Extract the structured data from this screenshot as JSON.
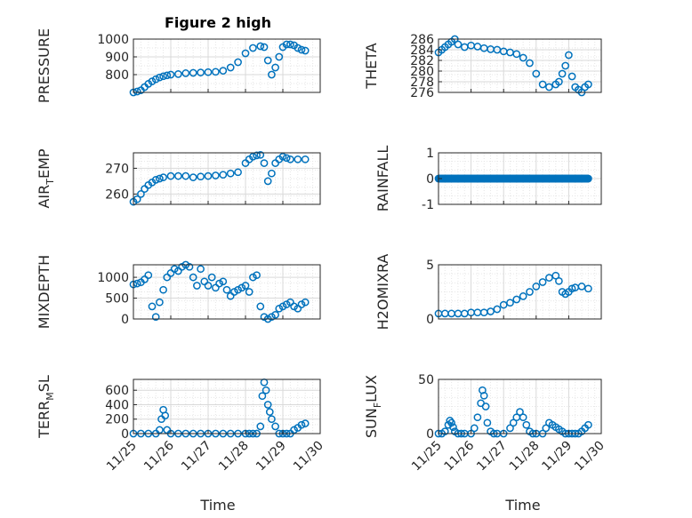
{
  "figure": {
    "title": "Figure 2 high",
    "xlabel": "Time",
    "x_tick_labels": [
      "11/25",
      "11/26",
      "11/27",
      "11/28",
      "11/29",
      "11/30"
    ]
  },
  "colors": {
    "marker": "#0072BD",
    "axis": "#262626",
    "grid": "#d9d9d9"
  },
  "chart_data": [
    {
      "type": "scatter",
      "id": "pressure",
      "ylabel": "PRESSURE",
      "ylim": [
        700,
        1000
      ],
      "yticks": [
        800,
        900,
        1000
      ],
      "ytick_labels": [
        "800",
        "900",
        "1000"
      ],
      "xlim": [
        0,
        5
      ],
      "grid": true,
      "marker": "circle-open",
      "x": [
        0.0,
        0.1,
        0.2,
        0.3,
        0.4,
        0.5,
        0.6,
        0.7,
        0.8,
        0.9,
        1.0,
        1.2,
        1.4,
        1.6,
        1.8,
        2.0,
        2.2,
        2.4,
        2.6,
        2.8,
        3.0,
        3.2,
        3.4,
        3.5,
        3.6,
        3.7,
        3.8,
        3.9,
        4.0,
        4.1,
        4.2,
        4.3,
        4.4,
        4.5,
        4.6
      ],
      "y": [
        700,
        705,
        712,
        730,
        748,
        762,
        774,
        784,
        791,
        796,
        800,
        803,
        808,
        810,
        812,
        814,
        816,
        822,
        840,
        870,
        920,
        950,
        960,
        955,
        880,
        800,
        840,
        900,
        955,
        970,
        970,
        965,
        950,
        940,
        935
      ],
      "title": "Figure 2 high"
    },
    {
      "type": "scatter",
      "id": "theta",
      "ylabel": "THETA",
      "ylim": [
        276,
        286
      ],
      "yticks": [
        276,
        278,
        280,
        282,
        284,
        286
      ],
      "ytick_labels": [
        "276",
        "278",
        "280",
        "282",
        "284",
        "286"
      ],
      "xlim": [
        0,
        5
      ],
      "grid": true,
      "marker": "circle-open",
      "x": [
        0.0,
        0.1,
        0.2,
        0.3,
        0.4,
        0.5,
        0.6,
        0.8,
        1.0,
        1.2,
        1.4,
        1.6,
        1.8,
        2.0,
        2.2,
        2.4,
        2.6,
        2.8,
        3.0,
        3.2,
        3.4,
        3.6,
        3.7,
        3.8,
        3.9,
        4.0,
        4.1,
        4.2,
        4.3,
        4.4,
        4.5,
        4.6
      ],
      "y": [
        283.5,
        284,
        284.5,
        285,
        285.5,
        286,
        285,
        284.5,
        284.8,
        284.6,
        284.3,
        284.1,
        284.0,
        283.7,
        283.5,
        283.2,
        282.5,
        281.5,
        279.5,
        277.5,
        277.0,
        277.5,
        278.0,
        279.5,
        281.0,
        283.0,
        279.0,
        277.0,
        276.5,
        276.0,
        277.0,
        277.5
      ]
    },
    {
      "type": "scatter",
      "id": "air_temp",
      "ylabel": "AIR_TEMP",
      "ylim": [
        256,
        276
      ],
      "yticks": [
        260,
        270
      ],
      "ytick_labels": [
        "260",
        "270"
      ],
      "xlim": [
        0,
        5
      ],
      "grid": true,
      "marker": "circle-open",
      "x": [
        0.0,
        0.1,
        0.2,
        0.3,
        0.4,
        0.5,
        0.6,
        0.7,
        0.8,
        1.0,
        1.2,
        1.4,
        1.6,
        1.8,
        2.0,
        2.2,
        2.4,
        2.6,
        2.8,
        3.0,
        3.1,
        3.2,
        3.3,
        3.4,
        3.5,
        3.6,
        3.7,
        3.8,
        3.9,
        4.0,
        4.1,
        4.2,
        4.4,
        4.6
      ],
      "y": [
        257,
        258,
        260,
        262,
        263.5,
        264.5,
        265.5,
        266,
        266.5,
        267,
        267,
        267,
        266.5,
        266.8,
        267,
        267.2,
        267.5,
        268,
        268.5,
        272,
        273.5,
        274.5,
        275,
        275.2,
        272,
        265,
        268,
        272,
        273.5,
        274.5,
        274,
        273.5,
        273.5,
        273.5
      ]
    },
    {
      "type": "scatter",
      "id": "rainfall",
      "ylabel": "RAINFALL",
      "ylim": [
        -1,
        1
      ],
      "yticks": [
        -1,
        0,
        1
      ],
      "ytick_labels": [
        "-1",
        "0",
        "1"
      ],
      "xlim": [
        0,
        5
      ],
      "grid": true,
      "marker": "circle-open",
      "x_range": [
        0.0,
        4.6
      ],
      "constant_value": 0
    },
    {
      "type": "scatter",
      "id": "mixdepth",
      "ylabel": "MIXDEPTH",
      "ylim": [
        0,
        1300
      ],
      "yticks": [
        0,
        500,
        1000
      ],
      "ytick_labels": [
        "0",
        "500",
        "1000"
      ],
      "xlim": [
        0,
        5
      ],
      "grid": true,
      "marker": "circle-open",
      "x": [
        0.0,
        0.1,
        0.2,
        0.3,
        0.4,
        0.5,
        0.6,
        0.7,
        0.8,
        0.9,
        1.0,
        1.1,
        1.2,
        1.3,
        1.4,
        1.5,
        1.6,
        1.7,
        1.8,
        1.9,
        2.0,
        2.1,
        2.2,
        2.3,
        2.4,
        2.5,
        2.6,
        2.7,
        2.8,
        2.9,
        3.0,
        3.1,
        3.2,
        3.3,
        3.4,
        3.5,
        3.6,
        3.7,
        3.8,
        3.9,
        4.0,
        4.1,
        4.2,
        4.3,
        4.4,
        4.5,
        4.6
      ],
      "y": [
        830,
        850,
        880,
        950,
        1050,
        300,
        50,
        400,
        700,
        1000,
        1100,
        1200,
        1150,
        1250,
        1300,
        1250,
        1000,
        800,
        1200,
        900,
        800,
        1000,
        750,
        850,
        900,
        700,
        550,
        650,
        700,
        750,
        800,
        650,
        1000,
        1050,
        300,
        50,
        0,
        50,
        100,
        250,
        300,
        350,
        400,
        300,
        250,
        350,
        400
      ]
    },
    {
      "type": "scatter",
      "id": "h2omixra",
      "ylabel": "H2OMIXRA",
      "ylim": [
        0,
        5
      ],
      "yticks": [
        0,
        5
      ],
      "ytick_labels": [
        "0",
        "5"
      ],
      "xlim": [
        0,
        5
      ],
      "grid": true,
      "marker": "circle-open",
      "x": [
        0.0,
        0.2,
        0.4,
        0.6,
        0.8,
        1.0,
        1.2,
        1.4,
        1.6,
        1.8,
        2.0,
        2.2,
        2.4,
        2.6,
        2.8,
        3.0,
        3.2,
        3.4,
        3.6,
        3.7,
        3.8,
        3.9,
        4.0,
        4.1,
        4.2,
        4.4,
        4.6
      ],
      "y": [
        0.5,
        0.5,
        0.5,
        0.5,
        0.5,
        0.6,
        0.6,
        0.6,
        0.7,
        0.9,
        1.3,
        1.5,
        1.8,
        2.1,
        2.5,
        3.0,
        3.4,
        3.8,
        4.0,
        3.5,
        2.5,
        2.3,
        2.5,
        2.8,
        2.9,
        3.0,
        2.8
      ]
    },
    {
      "type": "scatter",
      "id": "terr_msl",
      "ylabel": "TERR_MSL",
      "ylim": [
        0,
        750
      ],
      "yticks": [
        0,
        200,
        400,
        600
      ],
      "ytick_labels": [
        "0",
        "200",
        "400",
        "600"
      ],
      "xlim": [
        0,
        5
      ],
      "grid": true,
      "marker": "circle-open",
      "x": [
        0.0,
        0.2,
        0.4,
        0.6,
        0.7,
        0.75,
        0.8,
        0.85,
        0.9,
        1.0,
        1.2,
        1.4,
        1.6,
        1.8,
        2.0,
        2.2,
        2.4,
        2.6,
        2.8,
        3.0,
        3.1,
        3.2,
        3.3,
        3.4,
        3.45,
        3.5,
        3.55,
        3.6,
        3.65,
        3.7,
        3.8,
        3.9,
        4.0,
        4.1,
        4.2,
        4.3,
        4.4,
        4.5,
        4.6
      ],
      "y": [
        0,
        0,
        0,
        0,
        50,
        200,
        330,
        250,
        50,
        0,
        0,
        0,
        0,
        0,
        0,
        0,
        0,
        0,
        0,
        0,
        0,
        0,
        0,
        100,
        520,
        710,
        600,
        400,
        300,
        200,
        100,
        0,
        0,
        0,
        0,
        50,
        80,
        120,
        140
      ]
    },
    {
      "type": "scatter",
      "id": "sun_flux",
      "ylabel": "SUN_FLUX",
      "ylim": [
        0,
        50
      ],
      "yticks": [
        0,
        50
      ],
      "ytick_labels": [
        "0",
        "50"
      ],
      "xlim": [
        0,
        5
      ],
      "grid": true,
      "marker": "circle-open",
      "x": [
        0.0,
        0.1,
        0.2,
        0.3,
        0.35,
        0.4,
        0.45,
        0.5,
        0.6,
        0.7,
        0.8,
        1.0,
        1.1,
        1.2,
        1.3,
        1.35,
        1.4,
        1.45,
        1.5,
        1.6,
        1.7,
        1.8,
        2.0,
        2.2,
        2.3,
        2.4,
        2.5,
        2.6,
        2.7,
        2.8,
        2.9,
        3.0,
        3.2,
        3.3,
        3.4,
        3.5,
        3.6,
        3.7,
        3.8,
        3.9,
        4.0,
        4.1,
        4.2,
        4.3,
        4.4,
        4.5,
        4.6
      ],
      "y": [
        0,
        0,
        2,
        8,
        12,
        10,
        6,
        2,
        0,
        0,
        0,
        0,
        5,
        15,
        28,
        40,
        35,
        25,
        10,
        2,
        0,
        0,
        0,
        5,
        10,
        15,
        20,
        15,
        8,
        2,
        0,
        0,
        0,
        5,
        10,
        8,
        6,
        4,
        2,
        0,
        0,
        0,
        0,
        0,
        2,
        5,
        8
      ]
    }
  ]
}
